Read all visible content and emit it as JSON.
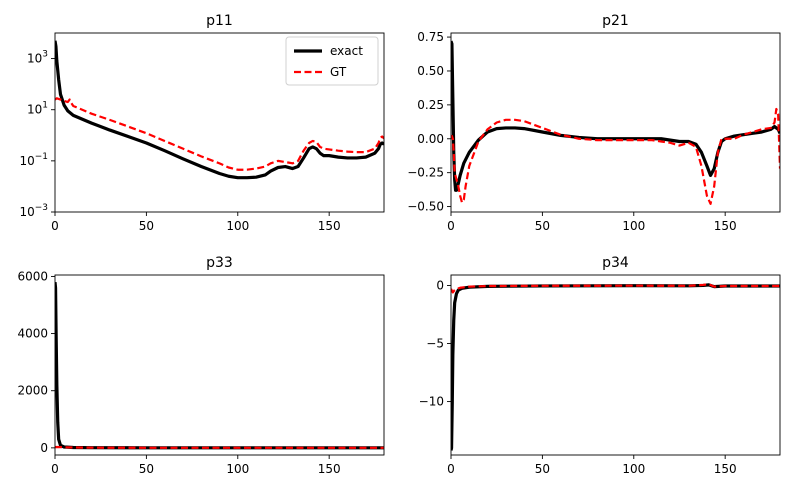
{
  "chart_data": [
    {
      "type": "line",
      "title": "p11",
      "xlim": [
        0,
        180
      ],
      "ylim": [
        0.001,
        10000
      ],
      "yscale": "log",
      "xticks": [
        0,
        50,
        100,
        150
      ],
      "yticks": [
        {
          "value": 0.001,
          "base": "10",
          "exp": "−3"
        },
        {
          "value": 0.1,
          "base": "10",
          "exp": "−1"
        },
        {
          "value": 10,
          "base": "10",
          "exp": "1"
        },
        {
          "value": 1000,
          "base": "10",
          "exp": "3"
        }
      ],
      "legend": "top-right",
      "series": [
        {
          "name": "exact",
          "color": "#000000",
          "style": "solid",
          "x": [
            0,
            0.5,
            1,
            2,
            3,
            5,
            7,
            10,
            20,
            30,
            40,
            50,
            60,
            70,
            80,
            90,
            95,
            100,
            105,
            110,
            115,
            118,
            122,
            126,
            130,
            133,
            136,
            139,
            141,
            143,
            145,
            147,
            150,
            155,
            160,
            165,
            170,
            175,
            177,
            178,
            179,
            180
          ],
          "y": [
            5000,
            3000,
            800,
            150,
            40,
            15,
            9,
            6,
            3,
            1.6,
            0.9,
            0.5,
            0.25,
            0.12,
            0.06,
            0.032,
            0.025,
            0.022,
            0.022,
            0.023,
            0.028,
            0.04,
            0.055,
            0.06,
            0.05,
            0.06,
            0.13,
            0.3,
            0.35,
            0.3,
            0.2,
            0.16,
            0.16,
            0.14,
            0.13,
            0.13,
            0.14,
            0.2,
            0.3,
            0.45,
            0.5,
            0.45
          ]
        },
        {
          "name": "GT",
          "color": "#ff0000",
          "style": "dashed",
          "x": [
            0,
            1,
            3,
            5,
            7,
            8,
            9,
            10,
            20,
            30,
            40,
            50,
            60,
            70,
            80,
            90,
            95,
            100,
            105,
            110,
            115,
            118,
            122,
            126,
            130,
            133,
            136,
            139,
            141,
            143,
            145,
            147,
            150,
            155,
            160,
            165,
            170,
            175,
            177,
            178,
            179,
            180
          ],
          "y": [
            25,
            28,
            25,
            22,
            20,
            25,
            18,
            14,
            7,
            4,
            2.2,
            1.2,
            0.6,
            0.3,
            0.15,
            0.08,
            0.055,
            0.045,
            0.045,
            0.05,
            0.06,
            0.08,
            0.1,
            0.09,
            0.08,
            0.1,
            0.25,
            0.5,
            0.6,
            0.55,
            0.35,
            0.3,
            0.28,
            0.25,
            0.23,
            0.22,
            0.22,
            0.3,
            0.5,
            0.8,
            0.9,
            0.75
          ]
        }
      ]
    },
    {
      "type": "line",
      "title": "p21",
      "xlim": [
        0,
        180
      ],
      "ylim": [
        -0.54,
        0.78
      ],
      "xticks": [
        0,
        50,
        100,
        150
      ],
      "yticks": [
        {
          "value": -0.5,
          "label": "−0.50"
        },
        {
          "value": -0.25,
          "label": "−0.25"
        },
        {
          "value": 0,
          "label": "0.00"
        },
        {
          "value": 0.25,
          "label": "0.25"
        },
        {
          "value": 0.5,
          "label": "0.50"
        },
        {
          "value": 0.75,
          "label": "0.75"
        }
      ],
      "series": [
        {
          "name": "exact",
          "color": "#000000",
          "style": "solid",
          "x": [
            0,
            0.5,
            1,
            1.5,
            2,
            2.5,
            3,
            4,
            5,
            7,
            10,
            15,
            20,
            25,
            30,
            35,
            40,
            50,
            60,
            70,
            80,
            90,
            100,
            110,
            115,
            120,
            125,
            130,
            134,
            137,
            140,
            142,
            144,
            146,
            148,
            150,
            155,
            160,
            165,
            170,
            175,
            177,
            179,
            180
          ],
          "y": [
            0.72,
            0.7,
            0.3,
            -0.1,
            -0.3,
            -0.38,
            -0.38,
            -0.33,
            -0.27,
            -0.18,
            -0.1,
            -0.01,
            0.05,
            0.075,
            0.08,
            0.08,
            0.075,
            0.05,
            0.025,
            0.01,
            0.0,
            0.0,
            0.0,
            0.0,
            0.0,
            -0.01,
            -0.02,
            -0.02,
            -0.04,
            -0.1,
            -0.2,
            -0.27,
            -0.22,
            -0.1,
            -0.02,
            0.0,
            0.02,
            0.03,
            0.04,
            0.05,
            0.07,
            0.09,
            0.07,
            0.04
          ]
        },
        {
          "name": "GT",
          "color": "#ff0000",
          "style": "dashed",
          "x": [
            0,
            0.5,
            1,
            1.5,
            2,
            3,
            4,
            5,
            6,
            7,
            8,
            10,
            15,
            20,
            25,
            30,
            35,
            40,
            50,
            60,
            70,
            80,
            90,
            100,
            110,
            115,
            120,
            125,
            130,
            134,
            137,
            140,
            142,
            144,
            146,
            148,
            150,
            155,
            160,
            165,
            170,
            175,
            177,
            178,
            179,
            180
          ],
          "y": [
            0.0,
            0.02,
            0.0,
            -0.1,
            -0.25,
            -0.3,
            -0.35,
            -0.42,
            -0.47,
            -0.45,
            -0.35,
            -0.2,
            -0.02,
            0.07,
            0.12,
            0.14,
            0.14,
            0.13,
            0.08,
            0.03,
            0.0,
            -0.01,
            -0.01,
            -0.01,
            -0.01,
            -0.02,
            -0.03,
            -0.05,
            -0.03,
            -0.06,
            -0.2,
            -0.42,
            -0.48,
            -0.35,
            -0.1,
            0.0,
            0.0,
            0.0,
            0.03,
            0.05,
            0.07,
            0.08,
            0.12,
            0.22,
            0.18,
            -0.22
          ]
        }
      ]
    },
    {
      "type": "line",
      "title": "p33",
      "xlim": [
        0,
        180
      ],
      "ylim": [
        -250,
        6050
      ],
      "xticks": [
        0,
        50,
        100,
        150
      ],
      "yticks": [
        {
          "value": 0,
          "label": "0"
        },
        {
          "value": 2000,
          "label": "2000"
        },
        {
          "value": 4000,
          "label": "4000"
        },
        {
          "value": 6000,
          "label": "6000"
        }
      ],
      "series": [
        {
          "name": "exact",
          "color": "#000000",
          "style": "solid",
          "x": [
            0,
            0.3,
            0.6,
            1,
            1.5,
            2,
            3,
            5,
            10,
            20,
            50,
            100,
            150,
            180
          ],
          "y": [
            5800,
            5600,
            4000,
            2200,
            900,
            300,
            90,
            30,
            12,
            5,
            2,
            1,
            1,
            1
          ]
        },
        {
          "name": "GT",
          "color": "#ff0000",
          "style": "dashed",
          "x": [
            0,
            1,
            3,
            5,
            10,
            20,
            50,
            100,
            150,
            180
          ],
          "y": [
            25,
            30,
            25,
            20,
            12,
            6,
            2,
            1,
            1,
            1
          ]
        }
      ]
    },
    {
      "type": "line",
      "title": "p34",
      "xlim": [
        0,
        180
      ],
      "ylim": [
        -14.6,
        0.9
      ],
      "xticks": [
        0,
        50,
        100,
        150
      ],
      "yticks": [
        {
          "value": -10,
          "label": "−10"
        },
        {
          "value": -5,
          "label": "−5"
        },
        {
          "value": 0,
          "label": "0"
        }
      ],
      "series": [
        {
          "name": "exact",
          "color": "#000000",
          "style": "solid",
          "x": [
            0,
            0.3,
            0.7,
            1,
            1.5,
            2,
            3,
            4,
            6,
            10,
            20,
            50,
            100,
            130,
            138,
            141,
            144,
            150,
            180
          ],
          "y": [
            -14.2,
            -14,
            -10,
            -6,
            -3,
            -1.5,
            -0.7,
            -0.4,
            -0.25,
            -0.15,
            -0.08,
            -0.04,
            -0.02,
            -0.03,
            0.0,
            0.05,
            -0.1,
            -0.05,
            -0.05
          ]
        },
        {
          "name": "GT",
          "color": "#ff0000",
          "style": "dashed",
          "x": [
            0,
            1,
            2,
            3,
            5,
            10,
            20,
            50,
            100,
            130,
            138,
            141,
            144,
            150,
            180
          ],
          "y": [
            -0.3,
            -0.6,
            -0.4,
            -0.3,
            -0.2,
            -0.1,
            -0.05,
            -0.03,
            -0.02,
            -0.03,
            0.05,
            0.1,
            -0.1,
            -0.05,
            -0.05
          ]
        }
      ]
    }
  ]
}
